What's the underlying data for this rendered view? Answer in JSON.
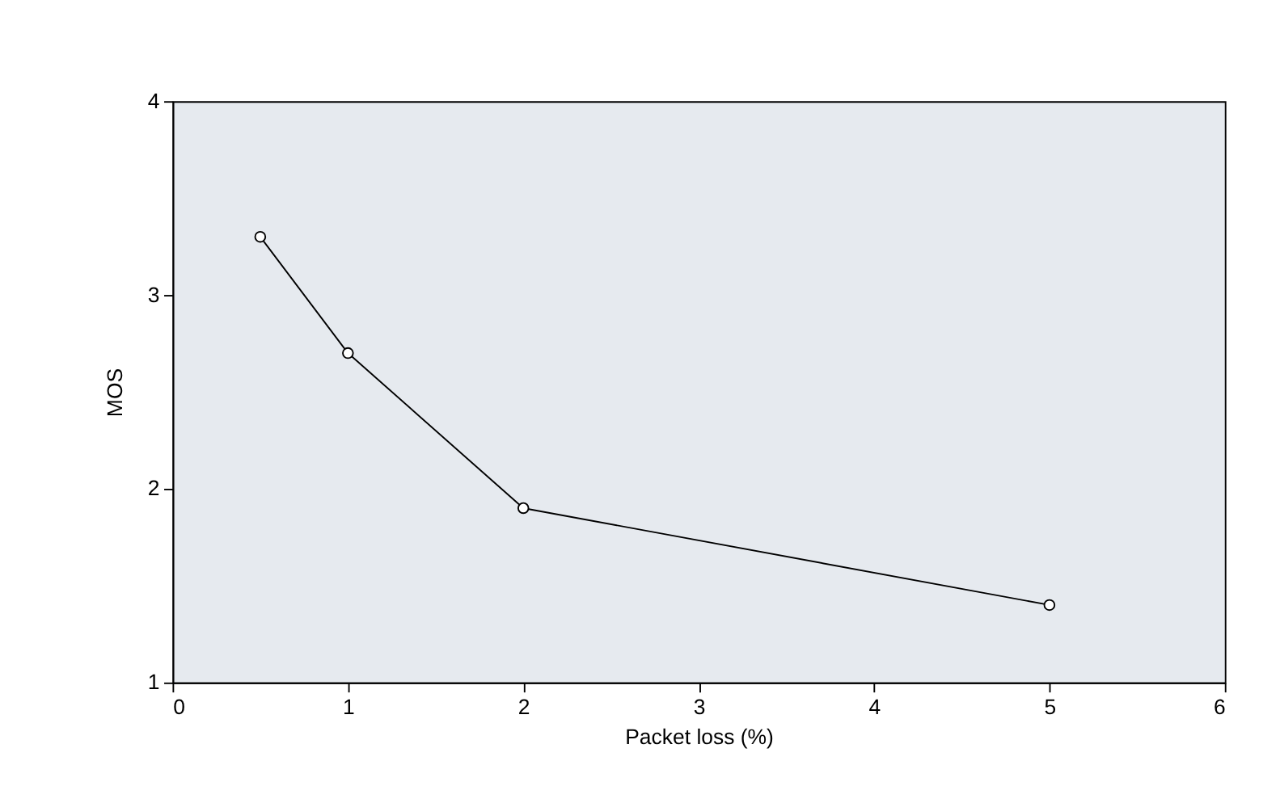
{
  "chart_data": {
    "type": "line",
    "xlabel": "Packet loss (%)",
    "ylabel": "MOS",
    "x": [
      0.5,
      1,
      2,
      5
    ],
    "series": [
      {
        "color": "#000000",
        "values": [
          3.3,
          2.7,
          1.9,
          1.4
        ]
      }
    ],
    "xlim": [
      0,
      6
    ],
    "xticks": [
      0,
      1,
      2,
      3,
      4,
      5,
      6
    ],
    "ylim": [
      1,
      4
    ],
    "yticks": [
      1,
      2,
      3,
      4
    ],
    "marker": "circle",
    "line_style": "solid",
    "grid": false,
    "legend": false
  }
}
